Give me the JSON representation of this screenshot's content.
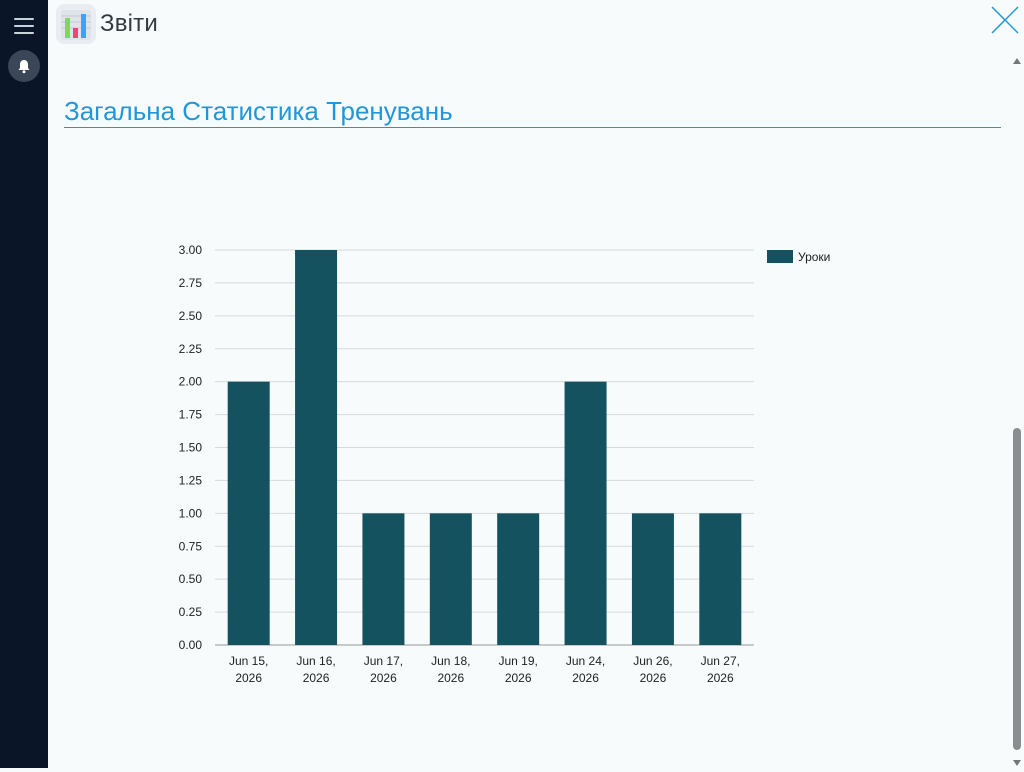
{
  "app": {
    "title": "Звіти",
    "menu_icon": "hamburger-icon",
    "notification_icon": "bell-icon",
    "logo_icon": "bar-chart-icon",
    "close_icon": "close-icon"
  },
  "section": {
    "title": "Загальна Статистика Тренувань"
  },
  "colors": {
    "sidebar": "#0a1628",
    "accent": "#2196d9",
    "bar": "#155260",
    "background": "#f7fbfc"
  },
  "chart_data": {
    "type": "bar",
    "categories": [
      [
        "Jun 15,",
        "2026"
      ],
      [
        "Jun 16,",
        "2026"
      ],
      [
        "Jun 17,",
        "2026"
      ],
      [
        "Jun 18,",
        "2026"
      ],
      [
        "Jun 19,",
        "2026"
      ],
      [
        "Jun 24,",
        "2026"
      ],
      [
        "Jun 26,",
        "2026"
      ],
      [
        "Jun 27,",
        "2026"
      ]
    ],
    "series": [
      {
        "name": "Уроки",
        "values": [
          2,
          3,
          1,
          1,
          1,
          2,
          1,
          1
        ]
      }
    ],
    "ylim": [
      0,
      3
    ],
    "yticks": [
      "0.00",
      "0.25",
      "0.50",
      "0.75",
      "1.00",
      "1.25",
      "1.50",
      "1.75",
      "2.00",
      "2.25",
      "2.50",
      "2.75",
      "3.00"
    ],
    "grid": true,
    "legend": "top-right"
  }
}
